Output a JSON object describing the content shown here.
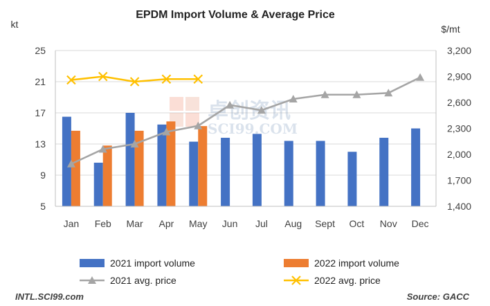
{
  "chart_data": {
    "type": "bar+line",
    "title": "EPDM Import Volume  & Average Price",
    "y_left_unit": "kt",
    "y_right_unit": "$/mt",
    "categories": [
      "Jan",
      "Feb",
      "Mar",
      "Apr",
      "May",
      "Jun",
      "Jul",
      "Aug",
      "Sept",
      "Oct",
      "Nov",
      "Dec"
    ],
    "y_left": {
      "min": 5,
      "max": 25,
      "ticks": [
        "5",
        "9",
        "13",
        "17",
        "21",
        "25"
      ]
    },
    "y_right": {
      "min": 1400,
      "max": 3200,
      "ticks": [
        "1,400",
        "1,700",
        "2,000",
        "2,300",
        "2,600",
        "2,900",
        "3,200"
      ]
    },
    "series": [
      {
        "name": "2021 import volume",
        "kind": "bar",
        "axis": "left",
        "color": "#4472C4",
        "values": [
          16.5,
          10.6,
          17.0,
          15.5,
          13.3,
          13.8,
          14.3,
          13.4,
          13.4,
          12.0,
          13.8,
          15.0
        ]
      },
      {
        "name": "2022 import volume",
        "kind": "bar",
        "axis": "left",
        "color": "#ED7D31",
        "values": [
          14.7,
          12.8,
          14.7,
          15.9,
          15.3,
          null,
          null,
          null,
          null,
          null,
          null,
          null
        ]
      },
      {
        "name": "2021 avg. price",
        "kind": "line",
        "axis": "right",
        "color": "#A5A5A5",
        "marker": "triangle",
        "values": [
          1890,
          2060,
          2120,
          2260,
          2330,
          2570,
          2510,
          2640,
          2690,
          2690,
          2710,
          2890
        ]
      },
      {
        "name": "2022 avg. price",
        "kind": "line",
        "axis": "right",
        "color": "#FFC000",
        "marker": "x",
        "values": [
          2860,
          2900,
          2840,
          2870,
          2870,
          null,
          null,
          null,
          null,
          null,
          null,
          null
        ]
      }
    ],
    "legend_position": "bottom",
    "grid": "horizontal",
    "watermark": "卓创资讯 SCI99.COM"
  },
  "footer": {
    "left": "INTL.SCI99.com",
    "right": "Source: GACC"
  }
}
